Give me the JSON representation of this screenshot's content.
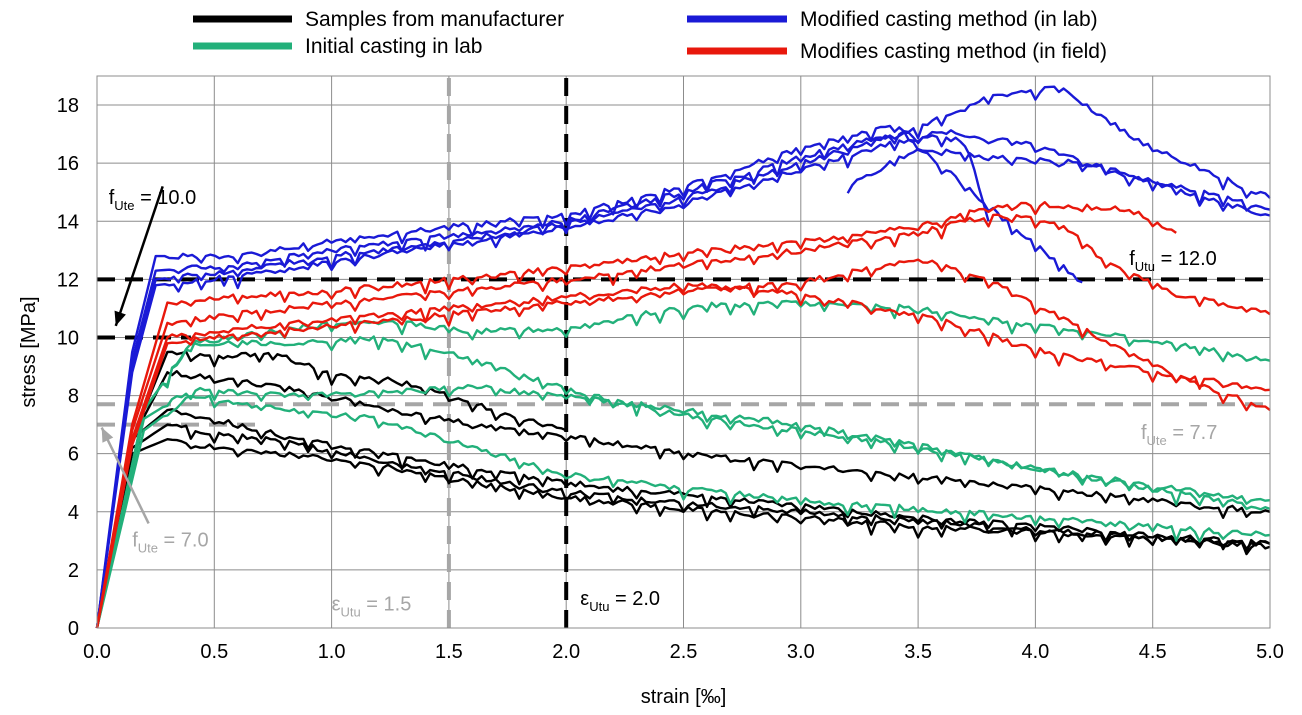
{
  "chart_data": {
    "type": "line",
    "title": "",
    "xlabel": "strain [‰]",
    "ylabel": "stress [MPa]",
    "xlim": [
      0,
      5
    ],
    "ylim": [
      0,
      19
    ],
    "x_ticks": [
      "0.0",
      "0.5",
      "1.0",
      "1.5",
      "2.0",
      "2.5",
      "3.0",
      "3.5",
      "4.0",
      "4.5",
      "5.0"
    ],
    "y_ticks": [
      "0",
      "2",
      "4",
      "6",
      "8",
      "10",
      "12",
      "14",
      "16",
      "18"
    ],
    "grid": true,
    "legend": {
      "placement": "top",
      "entries": [
        {
          "name": "Samples from manufacturer",
          "color": "#000000"
        },
        {
          "name": "Modified casting method (in lab)",
          "color": "#1a1ad6"
        },
        {
          "name": "Initial casting in lab",
          "color": "#22b07a"
        },
        {
          "name": "Modifies casting method (in field)",
          "color": "#e8180c"
        }
      ]
    },
    "reference_lines": [
      {
        "orientation": "horizontal",
        "value": 12.0,
        "color": "#000000",
        "xrange": [
          0,
          5
        ]
      },
      {
        "orientation": "horizontal",
        "value": 10.0,
        "color": "#000000",
        "xrange": [
          0,
          0.4
        ]
      },
      {
        "orientation": "horizontal",
        "value": 7.7,
        "color": "#a6a6a6",
        "xrange": [
          0,
          5
        ]
      },
      {
        "orientation": "horizontal",
        "value": 7.0,
        "color": "#a6a6a6",
        "xrange": [
          0,
          0.7
        ]
      },
      {
        "orientation": "vertical",
        "value": 1.5,
        "color": "#a6a6a6",
        "yrange": [
          0,
          19
        ]
      },
      {
        "orientation": "vertical",
        "value": 2.0,
        "color": "#000000",
        "yrange": [
          0,
          19
        ]
      }
    ],
    "annotations": [
      {
        "base": "f",
        "sub": "Ute",
        "value": " = 10.0",
        "color": "#000000",
        "x": 0.05,
        "y": 14.6
      },
      {
        "base": "f",
        "sub": "Utu",
        "value": " = 12.0",
        "color": "#000000",
        "x": 4.4,
        "y": 12.5
      },
      {
        "base": "f",
        "sub": "Ute",
        "value": " = 7.7",
        "color": "#a6a6a6",
        "x": 4.45,
        "y": 6.5
      },
      {
        "base": "f",
        "sub": "Ute",
        "value": " = 7.0",
        "color": "#a6a6a6",
        "x": 0.15,
        "y": 2.8
      },
      {
        "base": "ε",
        "sub": "Utu",
        "value": " = 1.5",
        "color": "#a6a6a6",
        "x": 1.0,
        "y": 0.6
      },
      {
        "base": "ε",
        "sub": "Utu",
        "value": " = 2.0",
        "color": "#000000",
        "x": 2.06,
        "y": 0.8
      }
    ],
    "arrows": [
      {
        "from": [
          0.28,
          15.2
        ],
        "to": [
          0.08,
          10.4
        ],
        "color": "#000000"
      },
      {
        "from": [
          0.22,
          3.6
        ],
        "to": [
          0.02,
          6.9
        ],
        "color": "#a6a6a6"
      }
    ],
    "series": [
      {
        "group": "Samples from manufacturer",
        "color": "#000000",
        "x": [
          0,
          0.15,
          0.3,
          0.5,
          0.75,
          1.0,
          1.3,
          1.5,
          1.8,
          2.0
        ],
        "y": [
          0,
          6.5,
          9.5,
          9.3,
          9.5,
          8.7,
          8.5,
          8.0,
          7.2,
          6.8
        ]
      },
      {
        "group": "Samples from manufacturer",
        "color": "#000000",
        "x": [
          0,
          0.15,
          0.3,
          0.5,
          0.8,
          1.2,
          1.6,
          2.0,
          2.5,
          3.0,
          3.5,
          4.0,
          4.5,
          5.0
        ],
        "y": [
          0,
          6.5,
          8.8,
          8.6,
          8.3,
          7.6,
          7.0,
          6.6,
          6.0,
          5.6,
          5.2,
          4.8,
          4.4,
          4.0
        ]
      },
      {
        "group": "Samples from manufacturer",
        "color": "#000000",
        "x": [
          0,
          0.15,
          0.3,
          0.5,
          0.8,
          1.2,
          1.6,
          2.0,
          2.5,
          3.0,
          3.5,
          4.0,
          4.5,
          5.0
        ],
        "y": [
          0,
          6.5,
          7.5,
          7.2,
          6.6,
          6.0,
          5.5,
          5.0,
          4.6,
          4.2,
          3.8,
          3.5,
          3.2,
          2.9
        ]
      },
      {
        "group": "Samples from manufacturer",
        "color": "#000000",
        "x": [
          0,
          0.15,
          0.3,
          0.5,
          0.8,
          1.2,
          1.6,
          2.0,
          2.5,
          3.0,
          3.5,
          4.0,
          4.5,
          5.0
        ],
        "y": [
          0,
          6.2,
          7.0,
          6.7,
          6.4,
          5.8,
          5.2,
          4.7,
          4.3,
          4.0,
          3.7,
          3.4,
          3.1,
          2.8
        ]
      },
      {
        "group": "Samples from manufacturer",
        "color": "#000000",
        "x": [
          0,
          0.15,
          0.3,
          0.5,
          0.8,
          1.2,
          1.6,
          2.0,
          2.5,
          3.0,
          3.5,
          4.0,
          4.5,
          5.0
        ],
        "y": [
          0,
          6.0,
          6.5,
          6.2,
          6.0,
          5.6,
          5.0,
          4.5,
          4.1,
          3.8,
          3.5,
          3.3,
          3.1,
          2.9
        ]
      },
      {
        "group": "Initial casting in lab",
        "color": "#22b07a",
        "x": [
          0,
          0.2,
          0.4,
          0.8,
          1.2,
          1.6,
          2.0,
          2.3,
          2.6,
          3.0,
          3.5,
          4.0,
          4.5,
          5.0
        ],
        "y": [
          0,
          7.5,
          9.8,
          10.3,
          10.6,
          10.2,
          10.3,
          10.8,
          11.1,
          11.2,
          11.0,
          10.4,
          9.9,
          9.2
        ]
      },
      {
        "group": "Initial casting in lab",
        "color": "#22b07a",
        "x": [
          0,
          0.2,
          0.4,
          0.8,
          1.2,
          1.5,
          1.8,
          2.2,
          2.6,
          3.0,
          3.5,
          4.0,
          4.5,
          5.0
        ],
        "y": [
          0,
          7.5,
          9.8,
          9.8,
          10.0,
          9.5,
          8.7,
          7.8,
          7.2,
          6.8,
          6.2,
          5.5,
          4.9,
          4.4
        ]
      },
      {
        "group": "Initial casting in lab",
        "color": "#22b07a",
        "x": [
          0,
          0.2,
          0.4,
          0.8,
          1.2,
          1.6,
          2.0,
          2.5,
          3.0,
          3.5,
          4.0,
          4.5,
          5.0
        ],
        "y": [
          0,
          7.2,
          8.2,
          8.0,
          8.1,
          8.3,
          8.0,
          7.5,
          7.0,
          6.3,
          5.5,
          4.8,
          4.1
        ]
      },
      {
        "group": "Initial casting in lab",
        "color": "#22b07a",
        "x": [
          0,
          0.2,
          0.4,
          0.8,
          1.2,
          1.6,
          2.0,
          2.5,
          3.0,
          3.5,
          4.0,
          4.5,
          5.0
        ],
        "y": [
          0,
          6.8,
          8.0,
          7.5,
          7.2,
          6.2,
          5.3,
          4.8,
          4.4,
          4.1,
          3.8,
          3.5,
          3.2
        ]
      },
      {
        "group": "Modified casting method (in lab)",
        "color": "#1a1ad6",
        "x": [
          0,
          0.15,
          0.25,
          0.6,
          1.0,
          1.5,
          2.0,
          2.5,
          3.0,
          3.4,
          3.8,
          4.2
        ],
        "y": [
          0,
          9.5,
          12.8,
          12.8,
          13.3,
          13.8,
          14.2,
          15.2,
          16.5,
          17.3,
          14.5,
          11.9
        ]
      },
      {
        "group": "Modified casting method (in lab)",
        "color": "#1a1ad6",
        "x": [
          0,
          0.15,
          0.25,
          0.6,
          1.0,
          1.5,
          2.0,
          2.5,
          3.0,
          3.4,
          3.7,
          3.8
        ],
        "y": [
          0,
          9.2,
          12.3,
          12.5,
          13.0,
          13.5,
          14.0,
          15.0,
          16.2,
          17.0,
          16.8,
          14.0
        ]
      },
      {
        "group": "Modified casting method (in lab)",
        "color": "#1a1ad6",
        "x": [
          0,
          0.15,
          0.25,
          0.6,
          1.0,
          1.5,
          2.0,
          2.5,
          3.0,
          3.5,
          3.8,
          3.9,
          4.1,
          4.3,
          4.5,
          4.8,
          5.0
        ],
        "y": [
          0,
          9.0,
          12.0,
          12.3,
          12.8,
          13.3,
          13.9,
          14.8,
          16.0,
          17.2,
          18.3,
          18.4,
          18.6,
          17.5,
          16.5,
          15.5,
          14.8
        ]
      },
      {
        "group": "Modified casting method (in lab)",
        "color": "#1a1ad6",
        "x": [
          0,
          0.15,
          0.25,
          0.6,
          1.0,
          1.5,
          2.0,
          2.5,
          3.0,
          3.3,
          3.6,
          4.0,
          4.5,
          5.0
        ],
        "y": [
          0,
          8.8,
          11.8,
          12.1,
          12.6,
          13.2,
          13.8,
          14.6,
          15.8,
          16.5,
          17.1,
          16.6,
          15.3,
          14.2
        ]
      },
      {
        "group": "Modified casting method (in lab)",
        "color": "#1a1ad6",
        "x": [
          3.2,
          3.5,
          3.8,
          4.2,
          4.6,
          5.0
        ],
        "y": [
          15.2,
          16.5,
          16.2,
          16.0,
          15.2,
          14.4
        ]
      },
      {
        "group": "Modifies casting method (in field)",
        "color": "#e8180c",
        "x": [
          0,
          0.15,
          0.3,
          0.6,
          1.0,
          1.5,
          2.0,
          2.5,
          3.0,
          3.5,
          3.8,
          4.0,
          4.4,
          4.6
        ],
        "y": [
          0,
          7.0,
          11.2,
          11.4,
          11.6,
          12.0,
          12.4,
          12.9,
          13.3,
          13.8,
          14.5,
          14.6,
          14.4,
          13.6
        ]
      },
      {
        "group": "Modifies casting method (in field)",
        "color": "#e8180c",
        "x": [
          0,
          0.15,
          0.3,
          0.6,
          1.0,
          1.5,
          2.0,
          2.5,
          3.0,
          3.5,
          3.8,
          4.1,
          4.3,
          4.6,
          5.0
        ],
        "y": [
          0,
          6.8,
          10.5,
          10.8,
          11.2,
          11.6,
          12.0,
          12.5,
          13.0,
          13.6,
          14.2,
          14.0,
          12.6,
          11.5,
          10.8
        ]
      },
      {
        "group": "Modifies casting method (in field)",
        "color": "#e8180c",
        "x": [
          0,
          0.15,
          0.3,
          0.6,
          1.0,
          1.5,
          2.0,
          2.5,
          2.8,
          3.2,
          3.6,
          4.0,
          4.5,
          5.0
        ],
        "y": [
          0,
          6.5,
          10.0,
          10.3,
          10.6,
          11.0,
          11.4,
          11.8,
          11.7,
          11.2,
          10.6,
          9.6,
          8.8,
          8.2
        ]
      },
      {
        "group": "Modifies casting method (in field)",
        "color": "#e8180c",
        "x": [
          0,
          0.15,
          0.3,
          0.6,
          1.0,
          1.5,
          2.0,
          2.5,
          3.0,
          3.5,
          3.8,
          4.2,
          4.6,
          5.0
        ],
        "y": [
          0,
          6.3,
          9.8,
          10.1,
          10.4,
          10.8,
          11.2,
          11.6,
          11.9,
          12.7,
          12.0,
          10.3,
          8.7,
          7.5
        ]
      }
    ]
  }
}
